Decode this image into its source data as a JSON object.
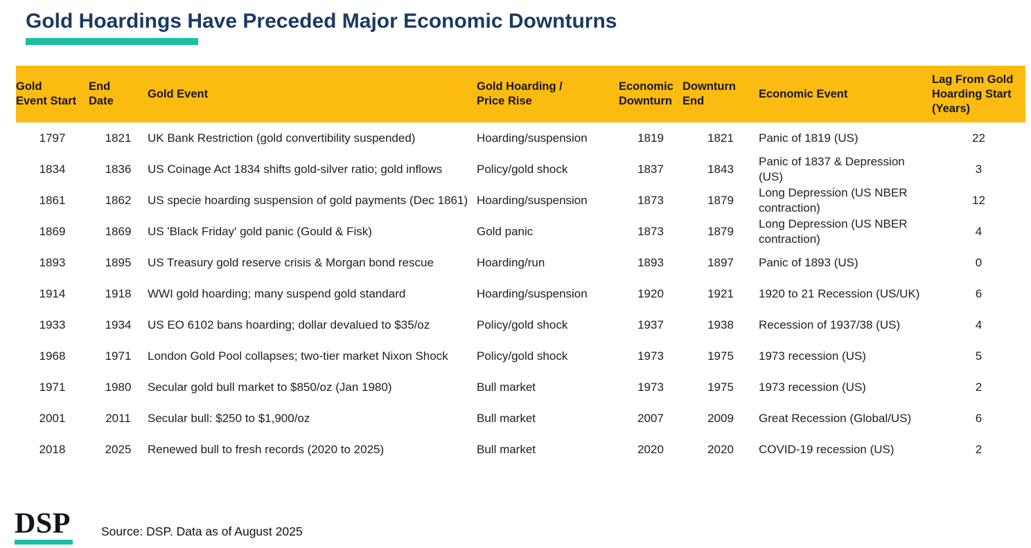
{
  "title": "Gold Hoardings Have Preceded Major Economic Downturns",
  "colors": {
    "accent_teal": "#1abfa6",
    "header_gold": "#fbbb10",
    "title_navy": "#1b3a63"
  },
  "chart_data": {
    "type": "table",
    "title": "Gold Hoardings Have Preceded Major Economic Downturns",
    "columns": [
      "Gold Event Start",
      "End Date",
      "Gold Event",
      "Gold Hoarding / Price Rise",
      "Economic Downturn",
      "Downturn End",
      "Economic Event",
      "Lag From Gold Hoarding Start (Years)"
    ],
    "rows": [
      [
        "1797",
        "1821",
        "UK Bank Restriction (gold convertibility suspended)",
        "Hoarding/suspension",
        "1819",
        "1821",
        "Panic of 1819 (US)",
        "22"
      ],
      [
        "1834",
        "1836",
        "US Coinage Act 1834 shifts gold-silver ratio; gold inflows",
        "Policy/gold shock",
        "1837",
        "1843",
        "Panic of 1837 & Depression (US)",
        "3"
      ],
      [
        "1861",
        "1862",
        "US specie hoarding suspension of gold payments (Dec 1861)",
        "Hoarding/suspension",
        "1873",
        "1879",
        "Long Depression (US NBER contraction)",
        "12"
      ],
      [
        "1869",
        "1869",
        "US 'Black Friday' gold panic (Gould & Fisk)",
        "Gold panic",
        "1873",
        "1879",
        "Long Depression (US NBER contraction)",
        "4"
      ],
      [
        "1893",
        "1895",
        "US Treasury gold reserve crisis & Morgan bond rescue",
        "Hoarding/run",
        "1893",
        "1897",
        "Panic of 1893 (US)",
        "0"
      ],
      [
        "1914",
        "1918",
        "WWI gold hoarding; many suspend gold standard",
        "Hoarding/suspension",
        "1920",
        "1921",
        "1920 to 21 Recession (US/UK)",
        "6"
      ],
      [
        "1933",
        "1934",
        "US EO 6102 bans hoarding; dollar devalued to $35/oz",
        "Policy/gold shock",
        "1937",
        "1938",
        "Recession of 1937/38 (US)",
        "4"
      ],
      [
        "1968",
        "1971",
        "London Gold Pool collapses; two-tier market  Nixon Shock",
        "Policy/gold shock",
        "1973",
        "1975",
        "1973 recession (US)",
        "5"
      ],
      [
        "1971",
        "1980",
        "Secular gold bull market to $850/oz (Jan 1980)",
        "Bull market",
        "1973",
        "1975",
        "1973 recession (US)",
        "2"
      ],
      [
        "2001",
        "2011",
        "Secular bull: $250 to $1,900/oz",
        "Bull market",
        "2007",
        "2009",
        "Great Recession (Global/US)",
        "6"
      ],
      [
        "2018",
        "2025",
        "Renewed bull to fresh records (2020 to 2025)",
        "Bull market",
        "2020",
        "2020",
        "COVID-19 recession (US)",
        "2"
      ]
    ]
  },
  "table": {
    "columns": [
      "Gold\nEvent Start",
      "End\nDate",
      "Gold Event",
      "Gold Hoarding /\nPrice Rise",
      "Economic\nDownturn",
      "Downturn\nEnd",
      "Economic Event",
      "Lag From Gold\nHoarding Start\n(Years)"
    ],
    "column_keys": [
      "gold-event-start",
      "end-date",
      "gold-event",
      "gold-hoarding-price-rise",
      "economic-downturn",
      "downturn-end",
      "economic-event",
      "lag-years"
    ]
  },
  "footer": {
    "logo_text": "DSP",
    "source": "Source: DSP. Data as of August 2025"
  }
}
